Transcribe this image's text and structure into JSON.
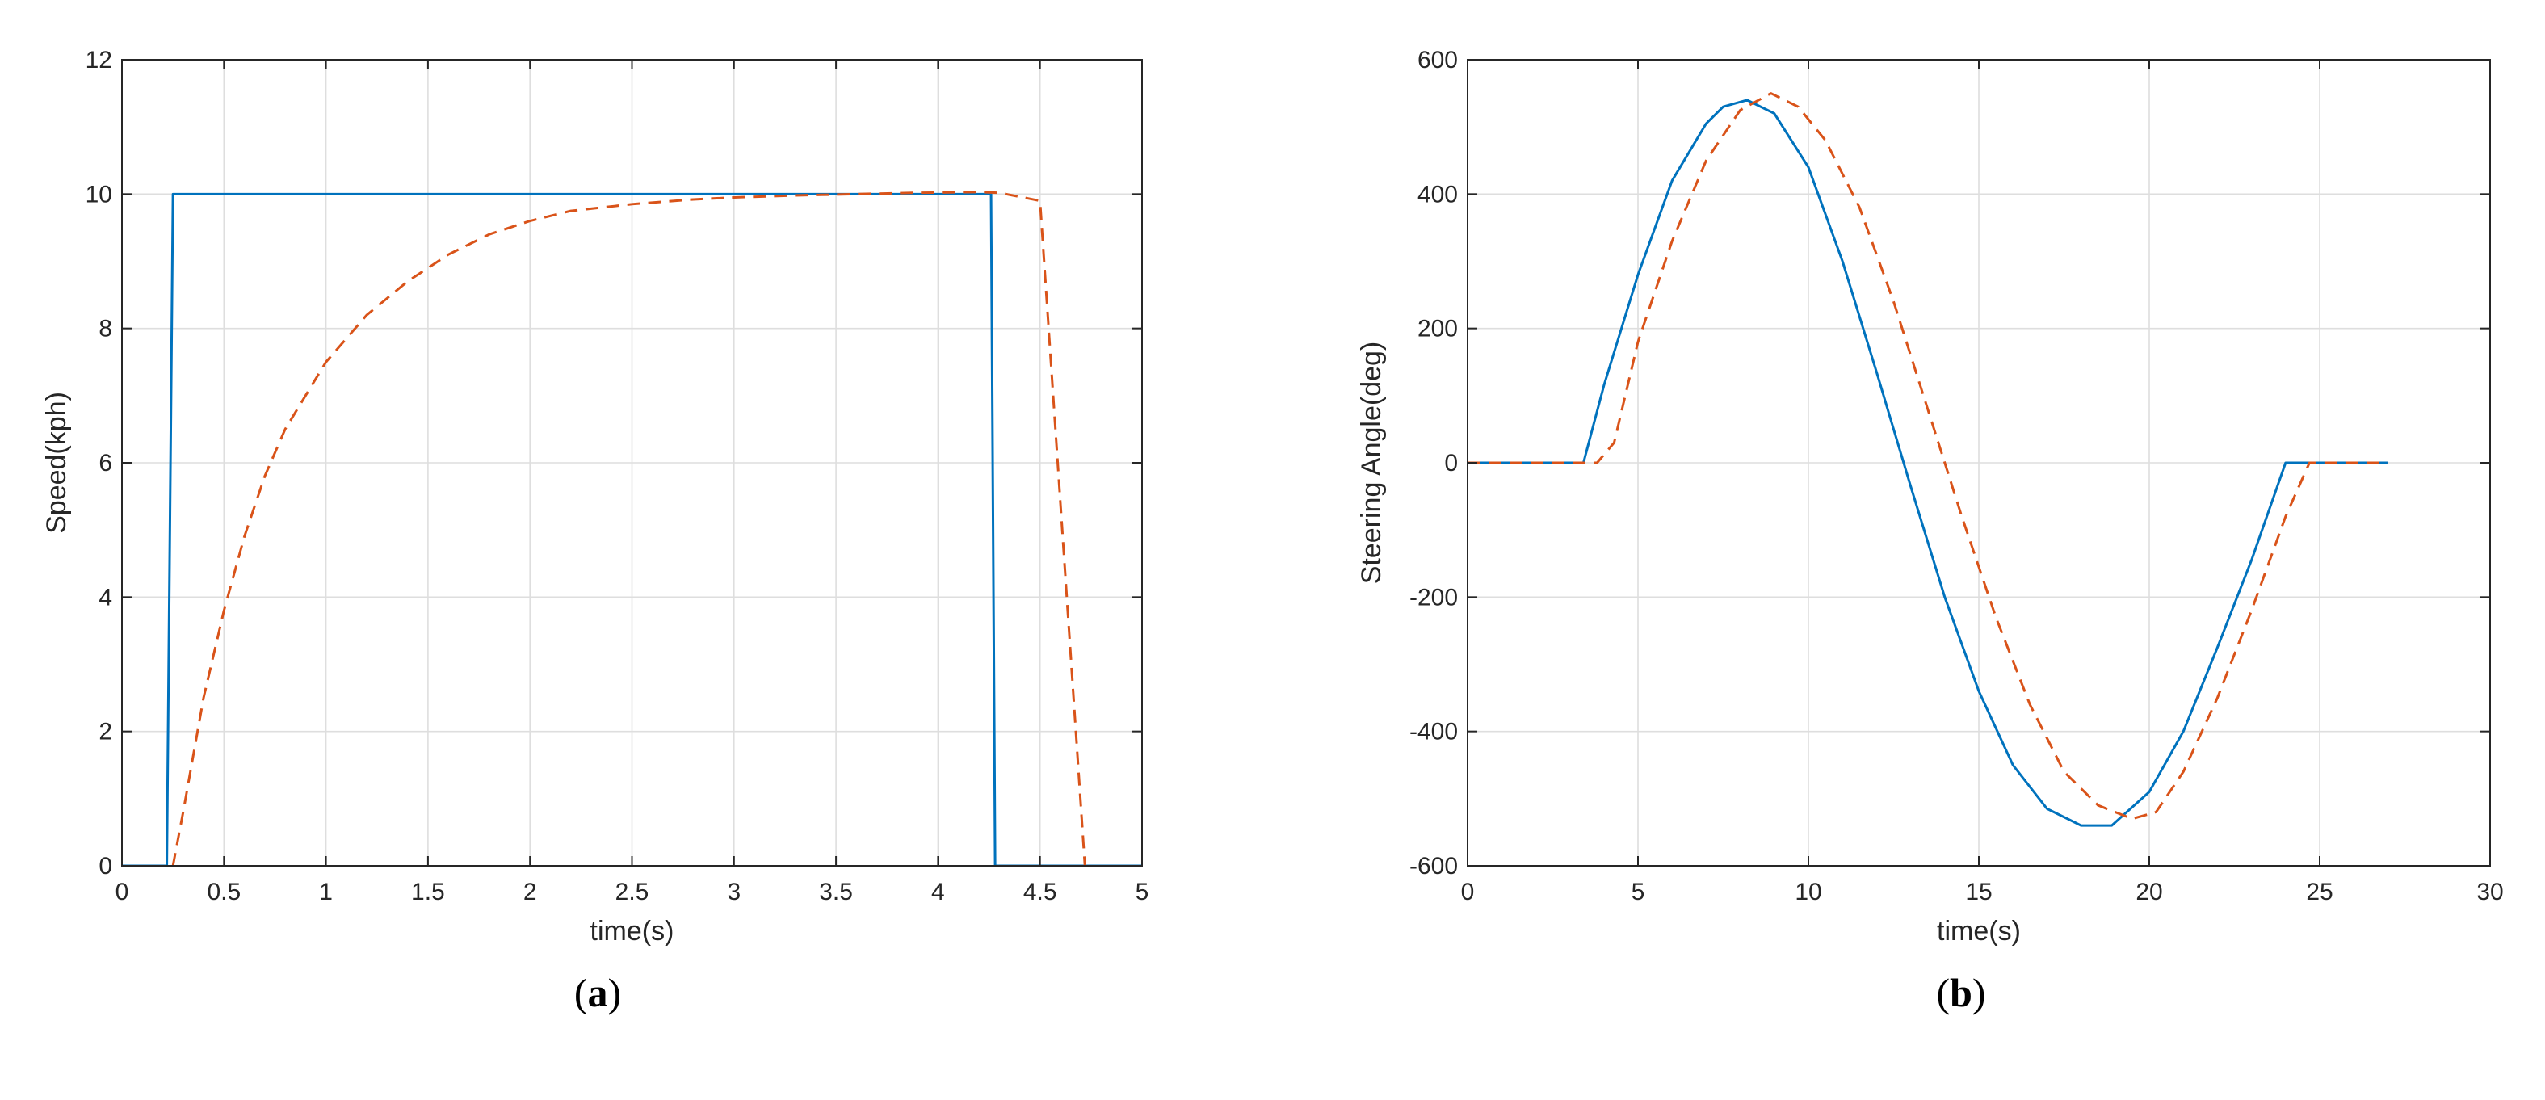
{
  "chart_data": [
    {
      "type": "line",
      "caption": "a",
      "xlabel": "time(s)",
      "ylabel": "Speed(kph)",
      "xlim": [
        0,
        5
      ],
      "ylim": [
        0,
        12
      ],
      "xticks": [
        0,
        0.5,
        1,
        1.5,
        2,
        2.5,
        3,
        3.5,
        4,
        4.5,
        5
      ],
      "xtick_labels": [
        "0",
        "0.5",
        "1",
        "1.5",
        "2",
        "2.5",
        "3",
        "3.5",
        "4",
        "4.5",
        "5"
      ],
      "yticks": [
        0,
        2,
        4,
        6,
        8,
        10,
        12
      ],
      "ytick_labels": [
        "0",
        "2",
        "4",
        "6",
        "8",
        "10",
        "12"
      ],
      "grid": true,
      "series": [
        {
          "style": "solid",
          "color": "#0072BD",
          "x": [
            0,
            0.22,
            0.25,
            4.26,
            4.28,
            5
          ],
          "y": [
            0,
            0,
            10,
            10,
            0,
            0
          ]
        },
        {
          "style": "dashed",
          "color": "#D95319",
          "x": [
            0.25,
            0.3,
            0.4,
            0.5,
            0.6,
            0.7,
            0.8,
            0.9,
            1.0,
            1.2,
            1.4,
            1.6,
            1.8,
            2.0,
            2.2,
            2.5,
            2.8,
            3.0,
            3.3,
            3.6,
            3.9,
            4.2,
            4.3,
            4.5,
            4.72
          ],
          "y": [
            0,
            0.8,
            2.5,
            3.8,
            4.9,
            5.8,
            6.5,
            7.0,
            7.5,
            8.2,
            8.7,
            9.1,
            9.4,
            9.6,
            9.75,
            9.85,
            9.92,
            9.95,
            9.98,
            10.0,
            10.02,
            10.03,
            10.02,
            9.9,
            0
          ]
        }
      ]
    },
    {
      "type": "line",
      "caption": "b",
      "xlabel": "time(s)",
      "ylabel": "Steering Angle(deg)",
      "xlim": [
        0,
        30
      ],
      "ylim": [
        -600,
        600
      ],
      "xticks": [
        0,
        5,
        10,
        15,
        20,
        25,
        30
      ],
      "xtick_labels": [
        "0",
        "5",
        "10",
        "15",
        "20",
        "25",
        "30"
      ],
      "yticks": [
        -600,
        -400,
        -200,
        0,
        200,
        400,
        600
      ],
      "ytick_labels": [
        "-600",
        "-400",
        "-200",
        "0",
        "200",
        "400",
        "600"
      ],
      "grid": true,
      "series": [
        {
          "style": "solid",
          "color": "#0072BD",
          "x": [
            0,
            3.4,
            4,
            5,
            6,
            7,
            7.5,
            8.2,
            9,
            10,
            11,
            12,
            13,
            14,
            15,
            16,
            17,
            18,
            18.9,
            20,
            21,
            22,
            23,
            24,
            27
          ],
          "y": [
            0,
            0,
            115,
            280,
            420,
            505,
            530,
            540,
            520,
            440,
            300,
            135,
            -35,
            -200,
            -340,
            -450,
            -515,
            -540,
            -540,
            -490,
            -400,
            -275,
            -145,
            0,
            0
          ]
        },
        {
          "style": "dashed",
          "color": "#D95319",
          "x": [
            0,
            3.8,
            4.3,
            5,
            6,
            7,
            8,
            8.9,
            9.7,
            10.5,
            11.5,
            12.5,
            13.5,
            14.5,
            15.5,
            16.5,
            17.5,
            18.5,
            19.5,
            20.2,
            21,
            22,
            23,
            24,
            24.7,
            27
          ],
          "y": [
            0,
            0,
            30,
            180,
            330,
            450,
            525,
            550,
            530,
            480,
            380,
            240,
            80,
            -80,
            -230,
            -360,
            -460,
            -510,
            -530,
            -520,
            -460,
            -350,
            -220,
            -80,
            0,
            0
          ]
        }
      ]
    }
  ]
}
